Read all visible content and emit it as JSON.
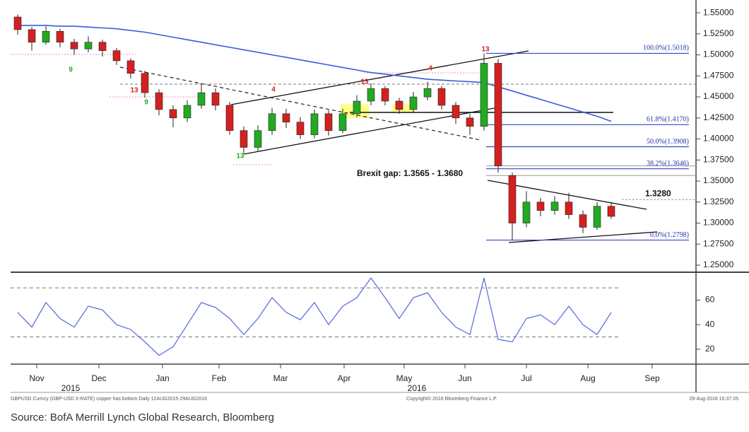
{
  "chart_data": [
    {
      "type": "candlestick",
      "xlim": [
        0,
        48.5
      ],
      "ylim": [
        1.2416,
        1.561
      ],
      "yticks": [
        {
          "value": 1.25,
          "label": "1.25000"
        },
        {
          "value": 1.275,
          "label": "1.27500"
        },
        {
          "value": 1.3,
          "label": "1.30000"
        },
        {
          "value": 1.325,
          "label": "1.32500"
        },
        {
          "value": 1.35,
          "label": "1.35000"
        },
        {
          "value": 1.375,
          "label": "1.37500"
        },
        {
          "value": 1.4,
          "label": "1.40000"
        },
        {
          "value": 1.425,
          "label": "1.42500"
        },
        {
          "value": 1.45,
          "label": "1.45000"
        },
        {
          "value": 1.475,
          "label": "1.47500"
        },
        {
          "value": 1.5,
          "label": "1.50000"
        },
        {
          "value": 1.525,
          "label": "1.52500"
        },
        {
          "value": 1.55,
          "label": "1.55000"
        }
      ],
      "up_color": "#22aa22",
      "down_color": "#d42020",
      "candles": {
        "open": [
          1.545,
          1.53,
          1.515,
          1.528,
          1.515,
          1.507,
          1.515,
          1.505,
          1.493,
          1.478,
          1.455,
          1.435,
          1.425,
          1.44,
          1.455,
          1.44,
          1.41,
          1.39,
          1.41,
          1.43,
          1.42,
          1.405,
          1.43,
          1.41,
          1.43,
          1.445,
          1.46,
          1.445,
          1.435,
          1.45,
          1.46,
          1.44,
          1.425,
          1.415,
          1.49,
          1.3565,
          1.3,
          1.325,
          1.315,
          1.325,
          1.31,
          1.295,
          1.32
        ],
        "high": [
          1.548,
          1.533,
          1.534,
          1.531,
          1.519,
          1.522,
          1.518,
          1.508,
          1.496,
          1.481,
          1.459,
          1.44,
          1.446,
          1.466,
          1.46,
          1.444,
          1.415,
          1.416,
          1.437,
          1.436,
          1.426,
          1.435,
          1.434,
          1.436,
          1.452,
          1.466,
          1.463,
          1.449,
          1.456,
          1.468,
          1.463,
          1.444,
          1.43,
          1.5018,
          1.495,
          1.36,
          1.338,
          1.33,
          1.332,
          1.336,
          1.315,
          1.325,
          1.325
        ],
        "low": [
          1.524,
          1.505,
          1.512,
          1.509,
          1.5,
          1.503,
          1.498,
          1.488,
          1.472,
          1.449,
          1.428,
          1.414,
          1.42,
          1.436,
          1.434,
          1.405,
          1.383,
          1.386,
          1.405,
          1.413,
          1.4,
          1.401,
          1.404,
          1.407,
          1.426,
          1.44,
          1.44,
          1.43,
          1.432,
          1.446,
          1.435,
          1.418,
          1.405,
          1.41,
          1.36,
          1.2798,
          1.295,
          1.308,
          1.31,
          1.305,
          1.288,
          1.292,
          1.305
        ],
        "close": [
          1.53,
          1.515,
          1.528,
          1.515,
          1.507,
          1.515,
          1.505,
          1.493,
          1.478,
          1.455,
          1.435,
          1.425,
          1.44,
          1.455,
          1.44,
          1.41,
          1.39,
          1.41,
          1.43,
          1.42,
          1.405,
          1.43,
          1.41,
          1.43,
          1.445,
          1.46,
          1.445,
          1.435,
          1.45,
          1.46,
          1.44,
          1.425,
          1.415,
          1.49,
          1.368,
          1.3,
          1.325,
          1.315,
          1.325,
          1.31,
          1.295,
          1.32,
          1.308
        ]
      },
      "moving_average": {
        "color": "#3b5bdb",
        "values": [
          1.535,
          1.535,
          1.535,
          1.534,
          1.534,
          1.533,
          1.532,
          1.531,
          1.529,
          1.527,
          1.524,
          1.521,
          1.518,
          1.515,
          1.512,
          1.509,
          1.506,
          1.503,
          1.5,
          1.497,
          1.494,
          1.491,
          1.488,
          1.485,
          1.482,
          1.479,
          1.477,
          1.475,
          1.473,
          1.471,
          1.47,
          1.469,
          1.468,
          1.467,
          1.462,
          1.457,
          1.452,
          1.447,
          1.442,
          1.437,
          1.432,
          1.427,
          1.421
        ]
      },
      "fib_levels": [
        {
          "value": 1.5018,
          "label": "100.0%(1.5018)"
        },
        {
          "value": 1.417,
          "label": "61.8%(1.4170)"
        },
        {
          "value": 1.3908,
          "label": "50.0%(1.3908)"
        },
        {
          "value": 1.3646,
          "label": "38.2%(1.3646)"
        },
        {
          "value": 1.2798,
          "label": "0.0%(1.2798)"
        }
      ],
      "fib_color": "#3344cc",
      "gap": {
        "label": "Brexit gap: 1.3565 - 1.3680",
        "values": [
          1.3565,
          1.368
        ]
      },
      "resistance": {
        "value": 1.328,
        "label": "1.3280"
      },
      "markers": [
        {
          "label": "9",
          "color": "#22aa22"
        },
        {
          "label": "13",
          "color": "#d42020"
        },
        {
          "label": "9",
          "color": "#22aa22"
        },
        {
          "label": "13",
          "color": "#22aa22"
        },
        {
          "label": "4",
          "color": "#d42020"
        },
        {
          "label": "13",
          "color": "#d42020"
        },
        {
          "label": "4",
          "color": "#d42020"
        },
        {
          "label": "13",
          "color": "#d42020"
        }
      ]
    },
    {
      "type": "line",
      "xlim": [
        0,
        48.5
      ],
      "ylim": [
        9,
        81
      ],
      "yticks": [
        20,
        40,
        60
      ],
      "levels": [
        30,
        70
      ],
      "color": "#5566dd",
      "values": [
        50,
        38,
        58,
        45,
        38,
        55,
        52,
        40,
        36,
        26,
        15,
        22,
        40,
        58,
        54,
        45,
        32,
        45,
        62,
        50,
        44,
        58,
        40,
        55,
        62,
        78,
        62,
        45,
        62,
        66,
        50,
        38,
        32,
        78,
        28,
        26,
        45,
        48,
        40,
        55,
        40,
        32,
        50
      ],
      "xticks": [
        {
          "value": 1.85,
          "label": "Nov"
        },
        {
          "value": 6.25,
          "label": "Dec"
        },
        {
          "value": 10.75,
          "label": "Jan"
        },
        {
          "value": 14.75,
          "label": "Feb"
        },
        {
          "value": 19.1,
          "label": "Mar"
        },
        {
          "value": 23.6,
          "label": "Apr"
        },
        {
          "value": 27.85,
          "label": "May"
        },
        {
          "value": 32.15,
          "label": "Jun"
        },
        {
          "value": 36.5,
          "label": "Jul"
        },
        {
          "value": 40.85,
          "label": "Aug"
        },
        {
          "value": 45.4,
          "label": "Sep"
        }
      ],
      "years": [
        {
          "value": 4.25,
          "label": "2015"
        },
        {
          "value": 28.75,
          "label": "2016"
        }
      ]
    }
  ],
  "footer": {
    "left": "GBPUSD Curncy (GBP-USD X-RATE) copper has bottom  Daily 12AUG2015-29AUG2016",
    "center": "Copyright© 2016 Bloomberg Finance L.P.",
    "right": "29-Aug-2016 15:37:25",
    "source": "Source: BofA Merrill Lynch Global Research, Bloomberg"
  }
}
